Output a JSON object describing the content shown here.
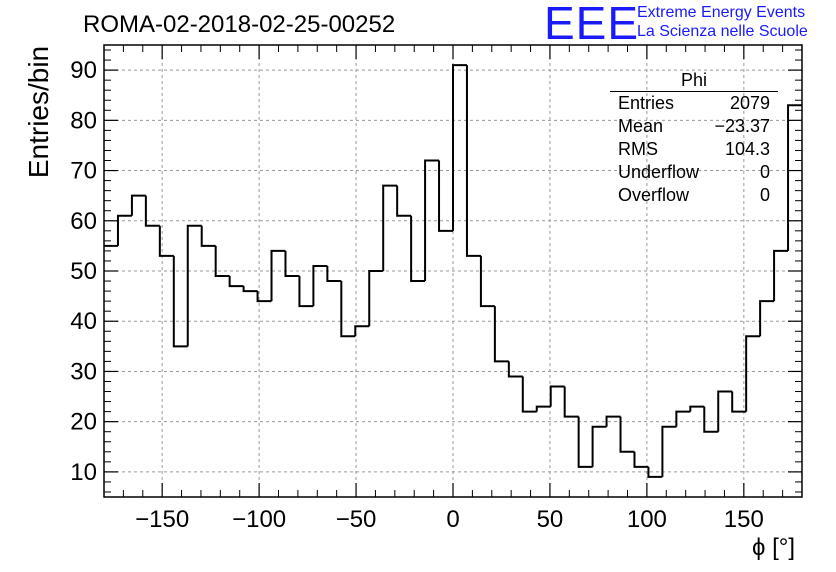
{
  "title": "ROMA-02-2018-02-25-00252",
  "logo": {
    "mark": "EEE",
    "line1": "Extreme Energy Events",
    "line2": "La Scienza nelle Scuole",
    "color": "#1a1aff"
  },
  "stats": {
    "name": "Phi",
    "rows": [
      {
        "label": "Entries",
        "value": "2079"
      },
      {
        "label": "Mean",
        "value": "−23.37"
      },
      {
        "label": "RMS",
        "value": "104.3"
      },
      {
        "label": "Underflow",
        "value": "0"
      },
      {
        "label": "Overflow",
        "value": "0"
      }
    ]
  },
  "chart_data": {
    "type": "bar",
    "style": "step-histogram",
    "xlabel": "ϕ [°]",
    "ylabel": "Entries/bin",
    "xlim": [
      -180,
      180
    ],
    "ylim": [
      5,
      95
    ],
    "grid": true,
    "bin_width": 7.2,
    "bin_edges_start": -180,
    "values": [
      55,
      61,
      65,
      59,
      53,
      35,
      59,
      55,
      49,
      47,
      46,
      44,
      54,
      49,
      43,
      51,
      48,
      37,
      39,
      50,
      67,
      61,
      48,
      72,
      58,
      91,
      53,
      43,
      32,
      29,
      22,
      23,
      27,
      21,
      11,
      19,
      21,
      14,
      11,
      9,
      19,
      22,
      23,
      18,
      26,
      22,
      37,
      44,
      54,
      83
    ],
    "xticks": [
      -150,
      -100,
      -50,
      0,
      50,
      100,
      150
    ],
    "xtick_labels": [
      "−150",
      "−100",
      "−50",
      "0",
      "50",
      "100",
      "150"
    ],
    "yticks": [
      10,
      20,
      30,
      40,
      50,
      60,
      70,
      80,
      90
    ],
    "ytick_labels": [
      "10",
      "20",
      "30",
      "40",
      "50",
      "60",
      "70",
      "80",
      "90"
    ]
  }
}
